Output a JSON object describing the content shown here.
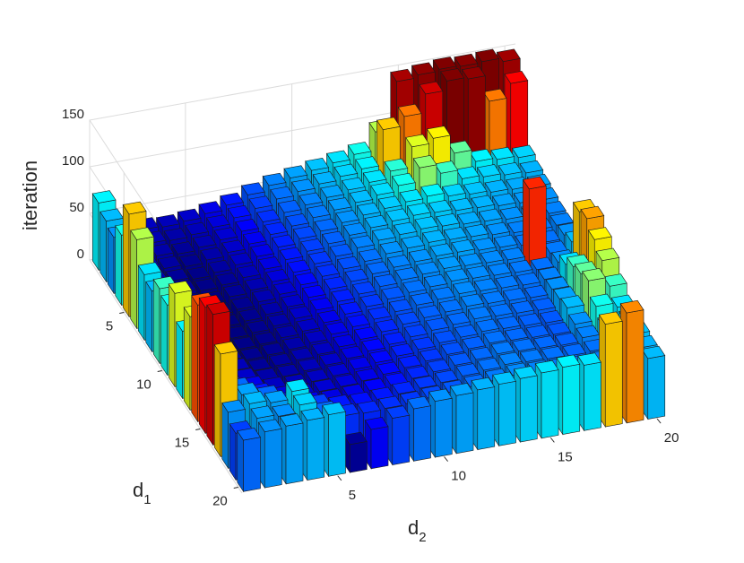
{
  "chart_data": {
    "type": "bar3",
    "zlabel": "iteration",
    "xlabel": {
      "base": "d",
      "sub": "2"
    },
    "ylabel": {
      "base": "d",
      "sub": "1"
    },
    "zlim": [
      0,
      150
    ],
    "zticks": [
      0,
      50,
      100,
      150
    ],
    "xlim": [
      0.5,
      20.5
    ],
    "xticks": [
      5,
      10,
      15,
      20
    ],
    "ylim": [
      0.5,
      20.5
    ],
    "yticks": [
      5,
      10,
      15,
      20
    ],
    "colormap": "jet",
    "grid": true,
    "values": [
      [
        72,
        38,
        35,
        34,
        36,
        40,
        45,
        52,
        58,
        62,
        66,
        70,
        75,
        95,
        145,
        148,
        150,
        149,
        150,
        146
      ],
      [
        65,
        36,
        33,
        32,
        34,
        38,
        44,
        50,
        56,
        60,
        64,
        68,
        72,
        110,
        120,
        140,
        150,
        148,
        120,
        135
      ],
      [
        60,
        35,
        32,
        30,
        33,
        37,
        42,
        48,
        54,
        58,
        62,
        66,
        70,
        78,
        100,
        105,
        85,
        72,
        70,
        68
      ],
      [
        75,
        34,
        31,
        29,
        32,
        36,
        41,
        47,
        52,
        57,
        61,
        65,
        69,
        75,
        90,
        80,
        70,
        68,
        66,
        64
      ],
      [
        110,
        33,
        30,
        28,
        31,
        35,
        40,
        46,
        51,
        55,
        60,
        64,
        67,
        70,
        72,
        68,
        66,
        64,
        63,
        62
      ],
      [
        95,
        33,
        30,
        28,
        30,
        34,
        39,
        45,
        50,
        54,
        59,
        63,
        66,
        68,
        67,
        65,
        64,
        62,
        61,
        60
      ],
      [
        70,
        33,
        29,
        27,
        30,
        33,
        38,
        44,
        49,
        53,
        58,
        62,
        64,
        66,
        65,
        63,
        62,
        60,
        59,
        58
      ],
      [
        65,
        32,
        29,
        27,
        29,
        33,
        37,
        43,
        48,
        52,
        56,
        60,
        62,
        64,
        63,
        62,
        60,
        58,
        57,
        58
      ],
      [
        80,
        33,
        29,
        27,
        29,
        32,
        36,
        42,
        47,
        51,
        55,
        58,
        60,
        62,
        62,
        60,
        59,
        57,
        56,
        60
      ],
      [
        75,
        34,
        30,
        27,
        29,
        32,
        36,
        41,
        46,
        50,
        54,
        57,
        59,
        61,
        60,
        59,
        58,
        130,
        57,
        65
      ],
      [
        100,
        35,
        31,
        28,
        29,
        32,
        35,
        40,
        45,
        49,
        53,
        56,
        58,
        60,
        59,
        58,
        57,
        56,
        60,
        110
      ],
      [
        72,
        36,
        32,
        29,
        30,
        32,
        35,
        40,
        44,
        48,
        52,
        55,
        57,
        59,
        58,
        57,
        56,
        58,
        70,
        115
      ],
      [
        100,
        38,
        34,
        30,
        31,
        33,
        35,
        39,
        43,
        47,
        51,
        54,
        56,
        58,
        57,
        56,
        55,
        60,
        80,
        105
      ],
      [
        125,
        40,
        36,
        32,
        32,
        34,
        36,
        39,
        43,
        46,
        50,
        53,
        55,
        57,
        56,
        55,
        54,
        62,
        85,
        95
      ],
      [
        135,
        45,
        40,
        35,
        34,
        35,
        37,
        40,
        43,
        46,
        49,
        52,
        54,
        56,
        55,
        54,
        53,
        65,
        90,
        80
      ],
      [
        140,
        55,
        45,
        38,
        36,
        37,
        38,
        40,
        43,
        46,
        49,
        52,
        54,
        56,
        55,
        54,
        53,
        60,
        75,
        70
      ],
      [
        110,
        62,
        55,
        45,
        40,
        39,
        40,
        42,
        44,
        47,
        50,
        53,
        55,
        57,
        56,
        55,
        54,
        58,
        65,
        68
      ],
      [
        60,
        65,
        62,
        70,
        50,
        45,
        44,
        45,
        47,
        49,
        51,
        54,
        56,
        58,
        57,
        56,
        55,
        56,
        60,
        66
      ],
      [
        50,
        62,
        60,
        68,
        55,
        48,
        47,
        48,
        49,
        51,
        53,
        55,
        57,
        59,
        58,
        57,
        56,
        57,
        60,
        64
      ],
      [
        55,
        60,
        62,
        64,
        66,
        30,
        42,
        50,
        56,
        60,
        62,
        64,
        66,
        68,
        70,
        72,
        70,
        110,
        118,
        65
      ]
    ]
  }
}
